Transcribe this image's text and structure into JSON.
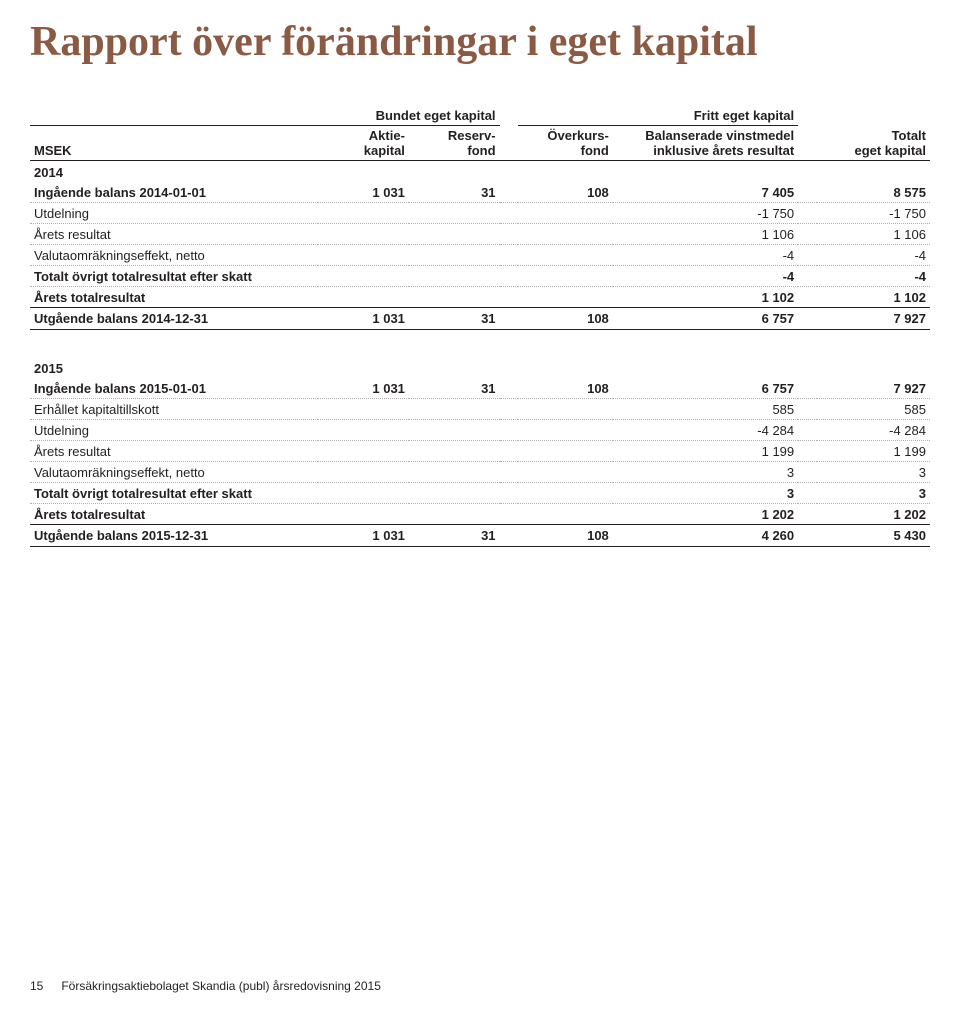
{
  "title": "Rapport över förändringar i eget kapital",
  "headers": {
    "group_bundet": "Bundet eget kapital",
    "group_fritt": "Fritt eget kapital",
    "msek": "MSEK",
    "aktiekapital": "Aktie-\nkapital",
    "reservfond": "Reserv-\nfond",
    "overkursfond": "Överkurs-\nfond",
    "balanserade": "Balanserade vinstmedel\ninklusive årets resultat",
    "totalt": "Totalt\neget kapital"
  },
  "sections": [
    {
      "year": "2014",
      "rows": [
        {
          "label": "Ingående balans 2014-01-01",
          "c1": "1 031",
          "c2": "31",
          "c3": "108",
          "c4": "7 405",
          "c5": "8 575",
          "bold": true
        },
        {
          "label": "Utdelning",
          "c1": "",
          "c2": "",
          "c3": "",
          "c4": "-1 750",
          "c5": "-1 750"
        },
        {
          "label": "Årets resultat",
          "c1": "",
          "c2": "",
          "c3": "",
          "c4": "1 106",
          "c5": "1 106"
        },
        {
          "label": "Valutaomräkningseffekt, netto",
          "c1": "",
          "c2": "",
          "c3": "",
          "c4": "-4",
          "c5": "-4"
        },
        {
          "label": "Totalt övrigt totalresultat efter skatt",
          "c1": "",
          "c2": "",
          "c3": "",
          "c4": "-4",
          "c5": "-4",
          "bold": true
        },
        {
          "label": "Årets totalresultat",
          "c1": "",
          "c2": "",
          "c3": "",
          "c4": "1 102",
          "c5": "1 102",
          "bold": true
        }
      ],
      "total": {
        "label": "Utgående balans 2014-12-31",
        "c1": "1 031",
        "c2": "31",
        "c3": "108",
        "c4": "6 757",
        "c5": "7 927"
      }
    },
    {
      "year": "2015",
      "rows": [
        {
          "label": "Ingående balans 2015-01-01",
          "c1": "1 031",
          "c2": "31",
          "c3": "108",
          "c4": "6 757",
          "c5": "7 927",
          "bold": true
        },
        {
          "label": "Erhållet kapitaltillskott",
          "c1": "",
          "c2": "",
          "c3": "",
          "c4": "585",
          "c5": "585"
        },
        {
          "label": "Utdelning",
          "c1": "",
          "c2": "",
          "c3": "",
          "c4": "-4 284",
          "c5": "-4 284"
        },
        {
          "label": "Årets resultat",
          "c1": "",
          "c2": "",
          "c3": "",
          "c4": "1 199",
          "c5": "1 199"
        },
        {
          "label": "Valutaomräkningseffekt, netto",
          "c1": "",
          "c2": "",
          "c3": "",
          "c4": "3",
          "c5": "3"
        },
        {
          "label": "Totalt övrigt totalresultat efter skatt",
          "c1": "",
          "c2": "",
          "c3": "",
          "c4": "3",
          "c5": "3",
          "bold": true
        },
        {
          "label": "Årets totalresultat",
          "c1": "",
          "c2": "",
          "c3": "",
          "c4": "1 202",
          "c5": "1 202",
          "bold": true
        }
      ],
      "total": {
        "label": "Utgående balans 2015-12-31",
        "c1": "1 031",
        "c2": "31",
        "c3": "108",
        "c4": "4 260",
        "c5": "5 430"
      }
    }
  ],
  "footer": {
    "page": "15",
    "text": "Försäkringsaktiebolaget Skandia (publ) årsredovisning 2015"
  },
  "colors": {
    "title": "#8b5a44",
    "text": "#231f20",
    "dotted": "#b0b0b0",
    "background": "#ffffff"
  }
}
